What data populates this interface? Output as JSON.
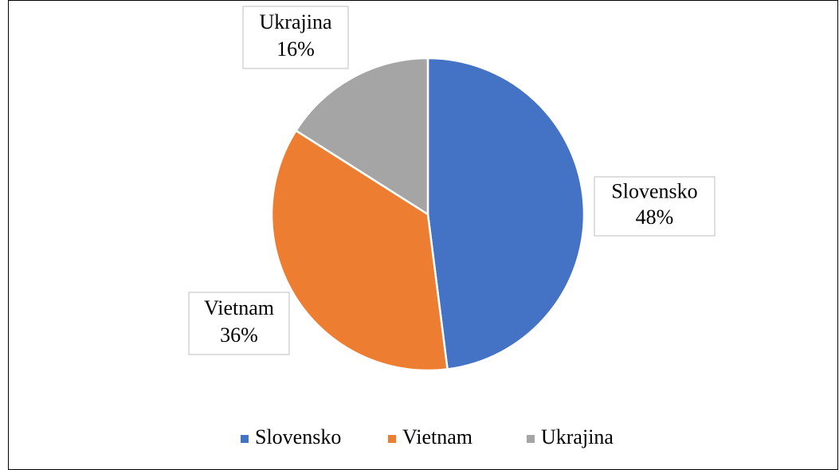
{
  "chart_data": {
    "type": "pie",
    "categories": [
      "Slovensko",
      "Vietnam",
      "Ukrajina"
    ],
    "values": [
      48,
      36,
      16
    ],
    "value_labels": [
      "48%",
      "36%",
      "16%"
    ],
    "colors": [
      "#4472c4",
      "#ed7d31",
      "#a5a5a5"
    ],
    "legend": "bottom"
  }
}
